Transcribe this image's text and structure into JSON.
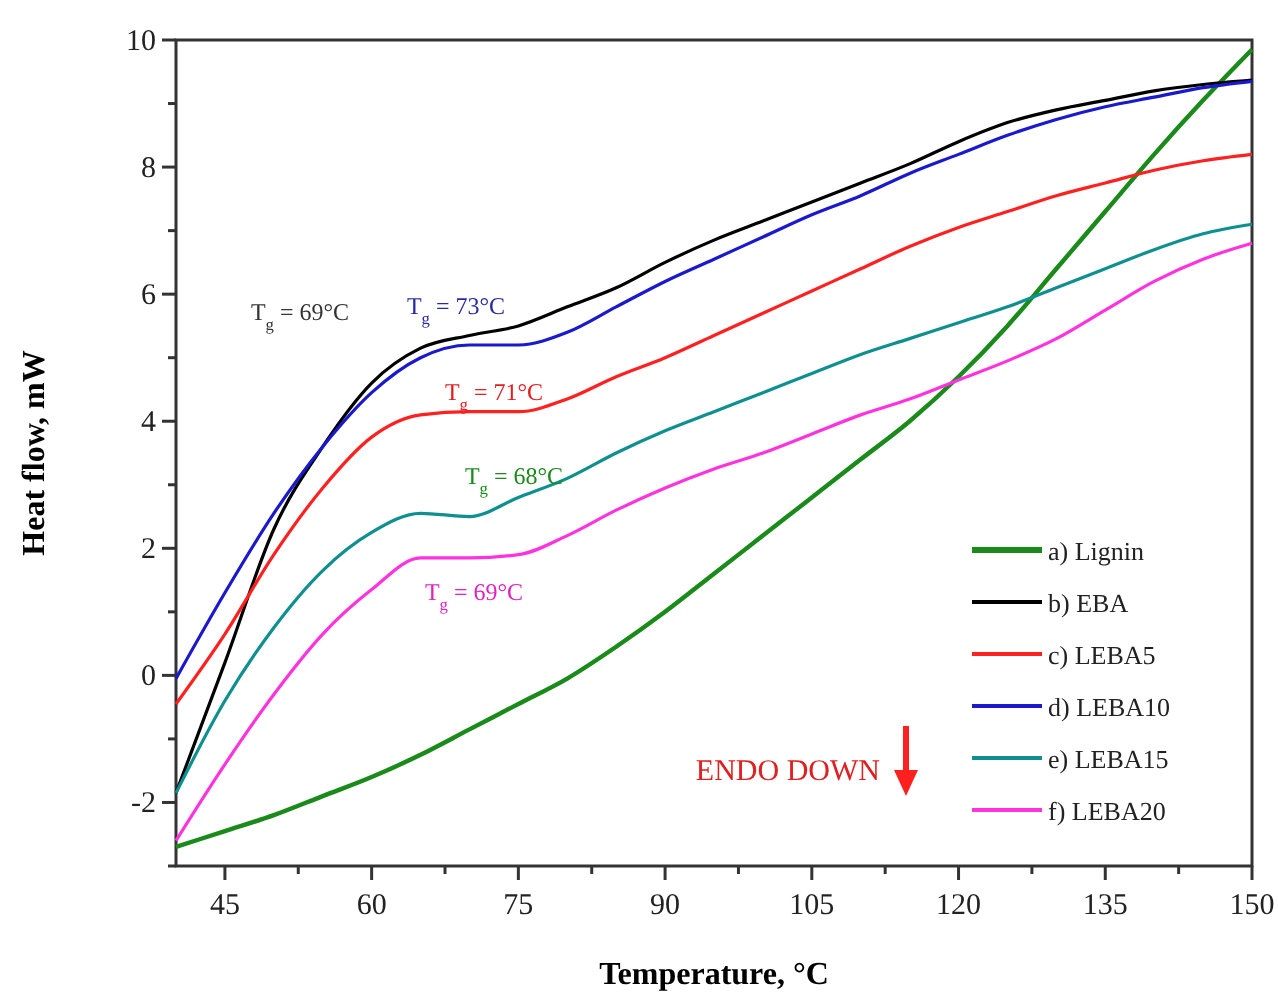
{
  "chart_data": {
    "type": "line",
    "xlabel": "Temperature, °C",
    "ylabel": "Heat flow, mW",
    "x": [
      40,
      45,
      50,
      55,
      60,
      65,
      70,
      75,
      80,
      85,
      90,
      95,
      100,
      105,
      110,
      115,
      120,
      125,
      130,
      135,
      140,
      145,
      150
    ],
    "xlim": [
      40,
      150
    ],
    "ylim": [
      -3,
      10
    ],
    "xticks": [
      45,
      {
        "value": 52.5,
        "label": null
      },
      60,
      {
        "value": 67.5,
        "label": null
      },
      75,
      {
        "value": 82.5,
        "label": null
      },
      90,
      {
        "value": 97.5,
        "label": null
      },
      105,
      {
        "value": 112.5,
        "label": null
      },
      120,
      {
        "value": 127.5,
        "label": null
      },
      135,
      {
        "value": 142.5,
        "label": null
      },
      150
    ],
    "yticks": [
      {
        "value": -3,
        "label": null
      },
      -2,
      {
        "value": -1,
        "label": null
      },
      0,
      {
        "value": 1,
        "label": null
      },
      2,
      {
        "value": 3,
        "label": null
      },
      4,
      {
        "value": 5,
        "label": null
      },
      6,
      {
        "value": 7,
        "label": null
      },
      8,
      {
        "value": 9,
        "label": null
      },
      10
    ],
    "legend": "bottom right",
    "grid": false,
    "marker": "none",
    "line_style": "solid",
    "series": [
      {
        "name": "a) Lignin",
        "color": "#1a8a1a",
        "values": [
          -2.7,
          -2.45,
          -2.2,
          -1.9,
          -1.6,
          -1.25,
          -0.85,
          -0.45,
          -0.05,
          0.45,
          1.0,
          1.6,
          2.2,
          2.8,
          3.4,
          4.0,
          4.7,
          5.5,
          6.4,
          7.3,
          8.2,
          9.05,
          9.85
        ]
      },
      {
        "name": "b) EBA",
        "color": "#000000",
        "values": [
          -1.85,
          0.2,
          2.3,
          3.6,
          4.6,
          5.15,
          5.35,
          5.5,
          5.8,
          6.1,
          6.5,
          6.85,
          7.15,
          7.45,
          7.75,
          8.05,
          8.4,
          8.7,
          8.9,
          9.05,
          9.2,
          9.3,
          9.37
        ]
      },
      {
        "name": "c) LEBA5",
        "color": "#ff2020",
        "values": [
          -0.45,
          0.65,
          1.9,
          2.95,
          3.75,
          4.1,
          4.15,
          4.15,
          4.35,
          4.7,
          5.0,
          5.35,
          5.7,
          6.05,
          6.4,
          6.75,
          7.05,
          7.3,
          7.55,
          7.75,
          7.95,
          8.1,
          8.2
        ]
      },
      {
        "name": "d) LEBA10",
        "color": "#1a1acc",
        "values": [
          -0.05,
          1.3,
          2.55,
          3.6,
          4.45,
          5.0,
          5.2,
          5.2,
          5.4,
          5.8,
          6.2,
          6.55,
          6.9,
          7.25,
          7.55,
          7.9,
          8.2,
          8.5,
          8.75,
          8.95,
          9.1,
          9.25,
          9.35
        ]
      },
      {
        "name": "e) LEBA15",
        "color": "#0f8f8f",
        "values": [
          -1.85,
          -0.4,
          0.75,
          1.65,
          2.25,
          2.55,
          2.5,
          2.8,
          3.1,
          3.5,
          3.85,
          4.15,
          4.45,
          4.75,
          5.05,
          5.3,
          5.55,
          5.8,
          6.1,
          6.4,
          6.7,
          6.95,
          7.1
        ]
      },
      {
        "name": "f) LEBA20",
        "color": "#ff33dd",
        "values": [
          -2.6,
          -1.4,
          -0.3,
          0.65,
          1.35,
          1.85,
          1.85,
          1.9,
          2.2,
          2.6,
          2.95,
          3.25,
          3.5,
          3.8,
          4.1,
          4.35,
          4.65,
          4.95,
          5.3,
          5.75,
          6.2,
          6.55,
          6.8
        ]
      }
    ],
    "annotations": [
      "T$_{g}$ = 69°C",
      "T$_{g}$ = 73°C",
      "T$_{g}$ = 71°C",
      "T$_{g}$ = 68°C",
      "T$_{g}$ = 69°C",
      "ENDO DOWN"
    ]
  }
}
